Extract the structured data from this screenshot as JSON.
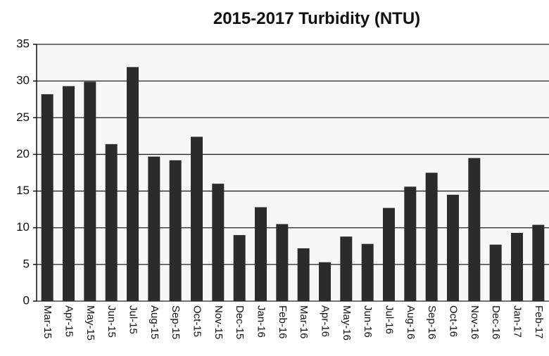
{
  "chart_data": {
    "type": "bar",
    "title": "2015-2017 Turbidity (NTU)",
    "categories": [
      "Mar-15",
      "Apr-15",
      "May-15",
      "Jun-15",
      "Jul-15",
      "Aug-15",
      "Sep-15",
      "Oct-15",
      "Nov-15",
      "Dec-15",
      "Jan-16",
      "Feb-16",
      "Mar-16",
      "Apr-16",
      "May-16",
      "Jun-16",
      "Jul-16",
      "Aug-16",
      "Sep-16",
      "Oct-16",
      "Nov-16",
      "Dec-16",
      "Jan-17",
      "Feb-17"
    ],
    "values": [
      28.2,
      29.3,
      29.9,
      21.4,
      31.9,
      19.7,
      19.2,
      22.4,
      16,
      9,
      12.8,
      10.5,
      7.2,
      5.3,
      8.8,
      7.8,
      12.7,
      15.6,
      17.5,
      14.5,
      19.5,
      7.7,
      9.3,
      10.4
    ],
    "color": "#2b2b2b",
    "ylim": [
      0,
      35
    ],
    "yticks": [
      0,
      5,
      10,
      15,
      20,
      25,
      30,
      35
    ],
    "grid": true
  }
}
